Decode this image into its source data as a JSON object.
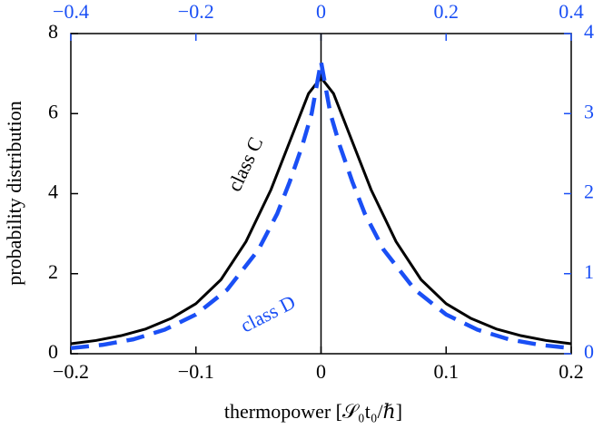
{
  "chart_data": {
    "type": "line",
    "x_label": "thermopower [𝒮₀t₀/ℏ]",
    "y_label": "probability distribution",
    "xlim": [
      -0.2,
      0.2
    ],
    "xticks": [
      {
        "value": -0.2,
        "label": "−0.2"
      },
      {
        "value": -0.1,
        "label": "−0.1"
      },
      0,
      0.1,
      0.2
    ],
    "x2lim": [
      -0.4,
      0.4
    ],
    "x2ticks": [
      {
        "value": -0.4,
        "label": "−0.4"
      },
      {
        "value": -0.2,
        "label": "−0.2"
      },
      0,
      0.2,
      0.4
    ],
    "ylim": [
      0,
      8
    ],
    "yticks": [
      0,
      2,
      4,
      6,
      8
    ],
    "y2lim": [
      0,
      4
    ],
    "y2ticks": [
      0,
      1,
      2,
      3,
      4
    ],
    "secondary_color": "#1a4ff5",
    "series": [
      {
        "name": "class C",
        "color": "#000000",
        "dashed": false,
        "x": [
          -0.2,
          -0.18,
          -0.16,
          -0.14,
          -0.12,
          -0.1,
          -0.08,
          -0.06,
          -0.04,
          -0.02,
          -0.01,
          0,
          0.01,
          0.02,
          0.04,
          0.06,
          0.08,
          0.1,
          0.12,
          0.14,
          0.16,
          0.18,
          0.2
        ],
        "values": [
          0.25,
          0.33,
          0.45,
          0.62,
          0.88,
          1.25,
          1.85,
          2.8,
          4.1,
          5.7,
          6.5,
          6.9,
          6.5,
          5.7,
          4.1,
          2.8,
          1.85,
          1.25,
          0.88,
          0.62,
          0.45,
          0.33,
          0.25
        ]
      },
      {
        "name": "class D",
        "color": "#1a4ff5",
        "dashed": true,
        "axis": "y2",
        "x_axis": "x2",
        "x": [
          -0.4,
          -0.35,
          -0.3,
          -0.25,
          -0.2,
          -0.15,
          -0.1,
          -0.07,
          -0.05,
          -0.03,
          -0.015,
          0,
          0.015,
          0.03,
          0.05,
          0.07,
          0.1,
          0.15,
          0.2,
          0.25,
          0.3,
          0.35,
          0.4
        ],
        "values": [
          0.07,
          0.11,
          0.18,
          0.3,
          0.49,
          0.8,
          1.3,
          1.75,
          2.15,
          2.6,
          3.0,
          3.65,
          3.0,
          2.6,
          2.15,
          1.75,
          1.3,
          0.8,
          0.49,
          0.3,
          0.18,
          0.11,
          0.07
        ]
      }
    ]
  }
}
